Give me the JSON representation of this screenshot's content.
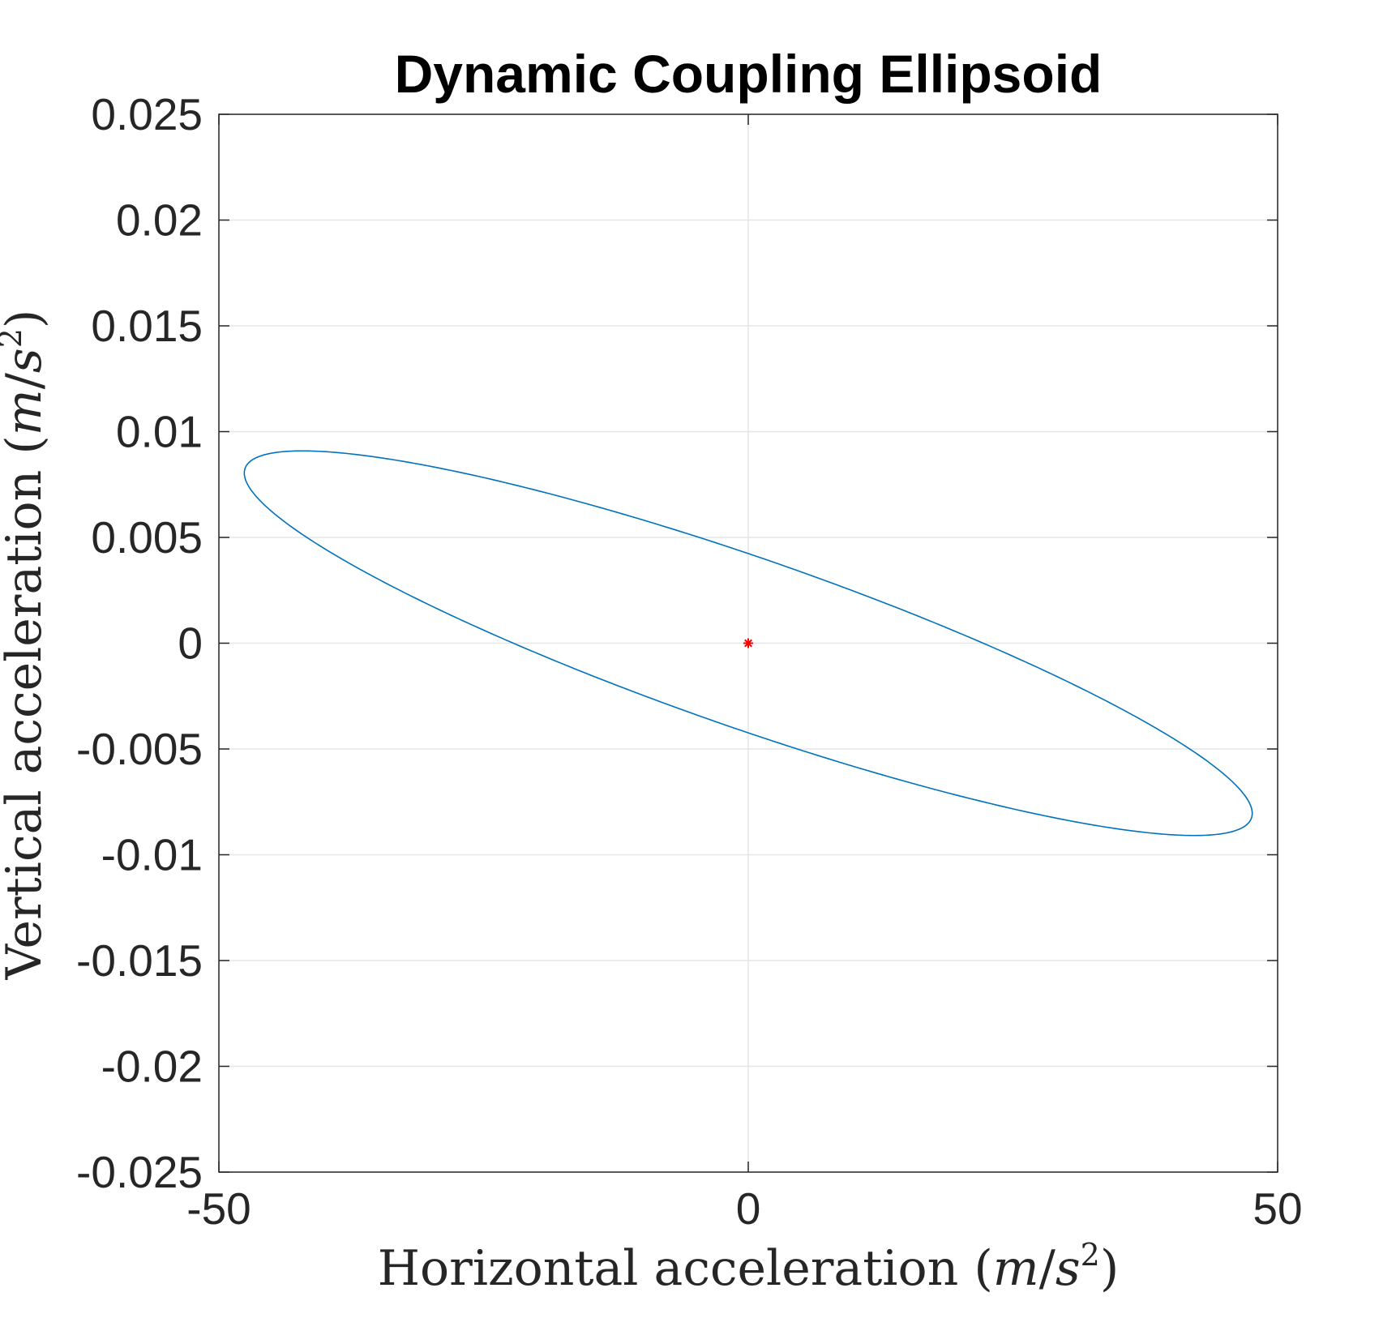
{
  "chart_data": {
    "type": "line",
    "title": "Dynamic Coupling Ellipsoid",
    "xlabel": {
      "prefix": "Horizontal acceleration (",
      "m": "m",
      "slash": "/",
      "s": "s",
      "exp": "2",
      "suffix": ")"
    },
    "ylabel": {
      "prefix": "Vertical acceleration (",
      "m": "m",
      "slash": "/",
      "s": "s",
      "exp": "2",
      "suffix": ")"
    },
    "xlim": [
      -50,
      50
    ],
    "ylim": [
      -0.025,
      0.025
    ],
    "xticks": [
      -50,
      0,
      50
    ],
    "xtick_labels": [
      "-50",
      "0",
      "50"
    ],
    "yticks": [
      0.025,
      0.02,
      0.015,
      0.01,
      0.005,
      0,
      -0.005,
      -0.01,
      -0.015,
      -0.02,
      -0.025
    ],
    "ytick_labels": [
      "0.025",
      "0.02",
      "0.015",
      "0.01",
      "0.005",
      "0",
      "-0.005",
      "-0.01",
      "-0.015",
      "-0.02",
      "-0.025"
    ],
    "grid": true,
    "series": [
      {
        "name": "ellipse",
        "kind": "ellipse",
        "color": "#0072BD",
        "a": 47.6,
        "b": 0.00909,
        "rho": 0.8847
      },
      {
        "name": "center",
        "kind": "marker",
        "marker": "*",
        "color": "#FF0000",
        "x": 0,
        "y": 0
      }
    ]
  },
  "colors": {
    "axis": "#262626",
    "grid": "#E6E6E6",
    "ellipse": "#0072BD",
    "marker": "#FF0000"
  }
}
